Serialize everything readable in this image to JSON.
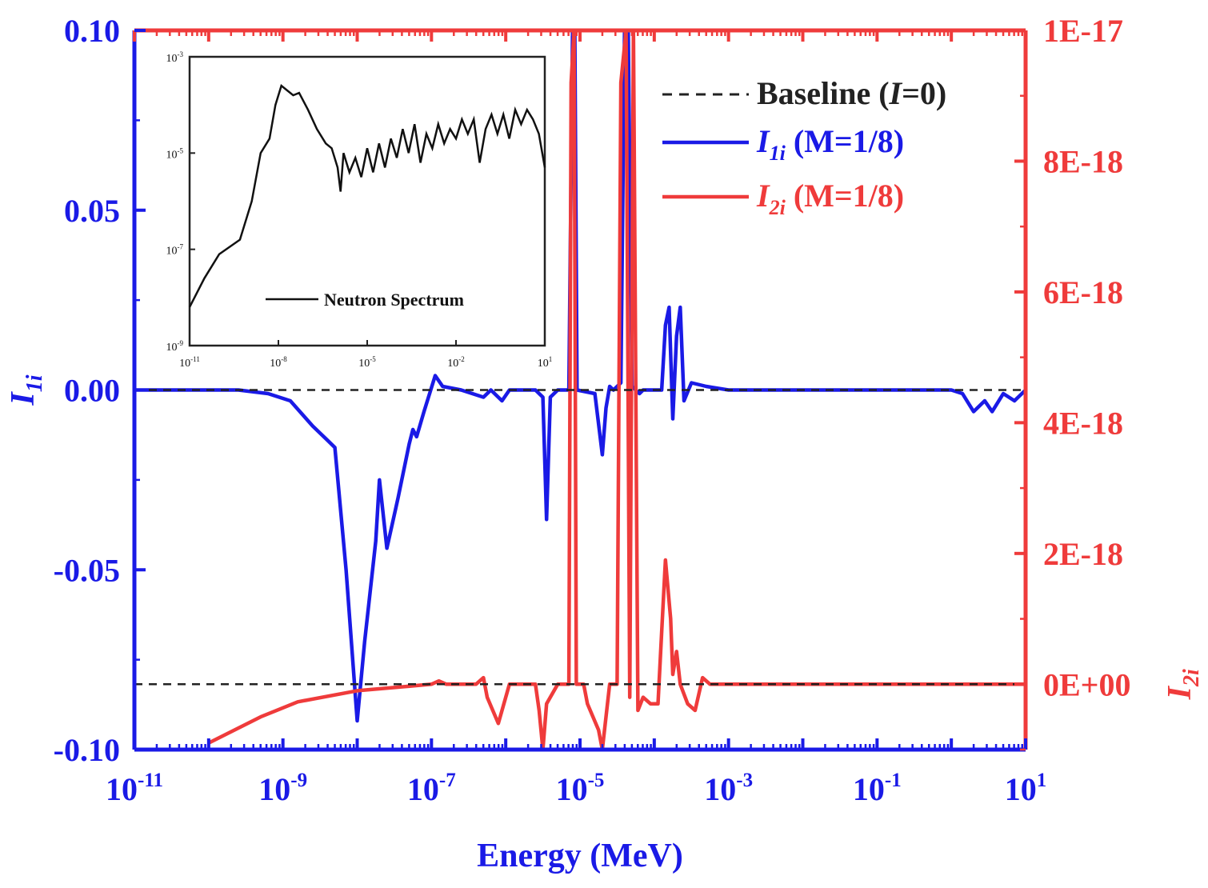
{
  "chart_data": {
    "type": "line",
    "xlabel": "Energy (MeV)",
    "xscale": "log",
    "xlim": [
      1e-11,
      10
    ],
    "x_ticks": [
      {
        "base": "10",
        "exp": "-11",
        "value": 1e-11
      },
      {
        "base": "10",
        "exp": "-9",
        "value": 1e-09
      },
      {
        "base": "10",
        "exp": "-7",
        "value": 1e-07
      },
      {
        "base": "10",
        "exp": "-5",
        "value": 1e-05
      },
      {
        "base": "10",
        "exp": "-3",
        "value": 0.001
      },
      {
        "base": "10",
        "exp": "-1",
        "value": 0.1
      },
      {
        "base": "10",
        "exp": "1",
        "value": 10
      }
    ],
    "y_left": {
      "label_main": "I",
      "label_sub": "1i",
      "lim": [
        -0.1,
        0.1
      ],
      "ticks": [
        {
          "label": "0.10",
          "value": 0.1
        },
        {
          "label": "0.05",
          "value": 0.05
        },
        {
          "label": "0.00",
          "value": 0.0
        },
        {
          "label": "-0.05",
          "value": -0.05
        },
        {
          "label": "-0.10",
          "value": -0.1
        }
      ],
      "color": "#1a1ae6"
    },
    "y_right": {
      "label_main": "I",
      "label_sub": "2i",
      "lim": [
        -1e-18,
        1e-17
      ],
      "ticks": [
        {
          "label": "1E-17",
          "value": 1e-17
        },
        {
          "label": "8E-18",
          "value": 8e-18
        },
        {
          "label": "6E-18",
          "value": 6e-18
        },
        {
          "label": "4E-18",
          "value": 4e-18
        },
        {
          "label": "2E-18",
          "value": 2e-18
        },
        {
          "label": "0E+00",
          "value": 0
        }
      ],
      "color": "#ef3b3b"
    },
    "legend": {
      "position": "top-right",
      "entries": [
        {
          "pre": "Baseline (",
          "italic": "I",
          "post": "=0)",
          "sub": "",
          "color": "#222222",
          "style": "dashed"
        },
        {
          "pre": "",
          "italic": "I",
          "sub": "1i",
          "post": " (M=1/8)",
          "color": "#1a1ae6",
          "style": "solid"
        },
        {
          "pre": "",
          "italic": "I",
          "sub": "2i",
          "post": " (M=1/8)",
          "color": "#ef3b3b",
          "style": "solid"
        }
      ]
    },
    "series": [
      {
        "name": "I1i (M=1/8)",
        "axis": "left",
        "color": "#1a1ae6",
        "points": [
          [
            -11,
            0
          ],
          [
            -9.6,
            0
          ],
          [
            -9.2,
            -0.001
          ],
          [
            -8.9,
            -0.003
          ],
          [
            -8.6,
            -0.01
          ],
          [
            -8.4,
            -0.014
          ],
          [
            -8.3,
            -0.016
          ],
          [
            -8.15,
            -0.05
          ],
          [
            -8.0,
            -0.092
          ],
          [
            -7.9,
            -0.07
          ],
          [
            -7.75,
            -0.042
          ],
          [
            -7.7,
            -0.025
          ],
          [
            -7.6,
            -0.044
          ],
          [
            -7.45,
            -0.03
          ],
          [
            -7.3,
            -0.015
          ],
          [
            -7.25,
            -0.011
          ],
          [
            -7.2,
            -0.013
          ],
          [
            -7.1,
            -0.006
          ],
          [
            -6.95,
            0.004
          ],
          [
            -6.85,
            0.001
          ],
          [
            -6.6,
            0
          ],
          [
            -6.3,
            -0.002
          ],
          [
            -6.2,
            0
          ],
          [
            -6.05,
            -0.003
          ],
          [
            -5.95,
            0
          ],
          [
            -5.6,
            0
          ],
          [
            -5.5,
            -0.002
          ],
          [
            -5.45,
            -0.036
          ],
          [
            -5.4,
            -0.002
          ],
          [
            -5.3,
            0
          ],
          [
            -5.15,
            0
          ],
          [
            -5.1,
            0.1
          ],
          [
            -5.07,
            0.1
          ],
          [
            -5.04,
            0
          ],
          [
            -4.8,
            -0.001
          ],
          [
            -4.7,
            -0.018
          ],
          [
            -4.65,
            -0.005
          ],
          [
            -4.6,
            0.001
          ],
          [
            -4.55,
            0
          ],
          [
            -4.45,
            0.002
          ],
          [
            -4.4,
            0.1
          ],
          [
            -4.35,
            0.1
          ],
          [
            -4.3,
            0.001
          ],
          [
            -4.2,
            -0.001
          ],
          [
            -4.15,
            0
          ],
          [
            -3.9,
            0
          ],
          [
            -3.85,
            0.018
          ],
          [
            -3.8,
            0.023
          ],
          [
            -3.75,
            -0.008
          ],
          [
            -3.7,
            0.015
          ],
          [
            -3.65,
            0.023
          ],
          [
            -3.6,
            -0.003
          ],
          [
            -3.5,
            0.002
          ],
          [
            -3.3,
            0.001
          ],
          [
            -3.0,
            0
          ],
          [
            -1.0,
            0
          ],
          [
            0,
            0
          ],
          [
            0.15,
            -0.001
          ],
          [
            0.3,
            -0.006
          ],
          [
            0.45,
            -0.003
          ],
          [
            0.55,
            -0.006
          ],
          [
            0.7,
            -0.001
          ],
          [
            0.85,
            -0.003
          ],
          [
            1.0,
            0
          ]
        ]
      },
      {
        "name": "I2i (M=1/8)",
        "axis": "right",
        "color": "#ef3b3b",
        "points": [
          [
            -10,
            -9e-19
          ],
          [
            -9.3,
            -5e-19
          ],
          [
            -8.8,
            -2.7e-19
          ],
          [
            -8.0,
            -1e-19
          ],
          [
            -7.5,
            -5e-20
          ],
          [
            -7.0,
            0
          ],
          [
            -6.9,
            5e-20
          ],
          [
            -6.8,
            0
          ],
          [
            -6.4,
            0
          ],
          [
            -6.3,
            1e-19
          ],
          [
            -6.25,
            -2e-19
          ],
          [
            -6.1,
            -6e-19
          ],
          [
            -5.95,
            0
          ],
          [
            -5.6,
            0
          ],
          [
            -5.55,
            -4e-19
          ],
          [
            -5.5,
            -1e-18
          ],
          [
            -5.45,
            -3e-19
          ],
          [
            -5.3,
            0
          ],
          [
            -5.15,
            0
          ],
          [
            -5.12,
            9.2e-18
          ],
          [
            -5.08,
            1e-17
          ],
          [
            -5.05,
            0
          ],
          [
            -4.95,
            0
          ],
          [
            -4.9,
            -3e-19
          ],
          [
            -4.75,
            -7e-19
          ],
          [
            -4.7,
            -1e-18
          ],
          [
            -4.65,
            -5e-19
          ],
          [
            -4.6,
            0
          ],
          [
            -4.5,
            0
          ],
          [
            -4.45,
            9.2e-18
          ],
          [
            -4.38,
            1e-17
          ],
          [
            -4.33,
            -2e-19
          ],
          [
            -4.28,
            1e-17
          ],
          [
            -4.22,
            -4e-19
          ],
          [
            -4.15,
            -2e-19
          ],
          [
            -4.05,
            -3e-19
          ],
          [
            -3.95,
            -3e-19
          ],
          [
            -3.9,
            8e-19
          ],
          [
            -3.85,
            1.9e-18
          ],
          [
            -3.78,
            1e-18
          ],
          [
            -3.75,
            1.5e-19
          ],
          [
            -3.7,
            5e-19
          ],
          [
            -3.65,
            0
          ],
          [
            -3.55,
            -3e-19
          ],
          [
            -3.45,
            -4e-19
          ],
          [
            -3.35,
            1e-19
          ],
          [
            -3.25,
            0
          ],
          [
            1.0,
            0
          ]
        ]
      },
      {
        "name": "Baseline (I=0)",
        "axis": "both",
        "color": "#222222",
        "style": "dashed",
        "points": [
          [
            -11,
            0
          ],
          [
            1,
            0
          ]
        ]
      }
    ],
    "inset": {
      "type": "line",
      "legend_label": "Neutron Spectrum",
      "xscale": "log",
      "yscale": "log",
      "xlim": [
        1e-11,
        10
      ],
      "ylim": [
        1e-09,
        0.001
      ],
      "x_ticks": [
        {
          "base": "10",
          "exp": "-11",
          "value": 1e-11
        },
        {
          "base": "10",
          "exp": "-8",
          "value": 1e-08
        },
        {
          "base": "10",
          "exp": "-5",
          "value": 1e-05
        },
        {
          "base": "10",
          "exp": "-2",
          "value": 0.01
        },
        {
          "base": "10",
          "exp": "1",
          "value": 10
        }
      ],
      "y_ticks": [
        {
          "base": "10",
          "exp": "-3",
          "value": 0.001
        },
        {
          "base": "10",
          "exp": "-5",
          "value": 1e-05
        },
        {
          "base": "10",
          "exp": "-7",
          "value": 1e-07
        },
        {
          "base": "10",
          "exp": "-9",
          "value": 1e-09
        }
      ],
      "color": "#111111",
      "points": [
        [
          -11,
          -8.2
        ],
        [
          -10.5,
          -7.6
        ],
        [
          -10.0,
          -7.1
        ],
        [
          -9.3,
          -6.8
        ],
        [
          -8.9,
          -6.0
        ],
        [
          -8.6,
          -5.0
        ],
        [
          -8.3,
          -4.7
        ],
        [
          -8.1,
          -4.0
        ],
        [
          -7.9,
          -3.6
        ],
        [
          -7.7,
          -3.7
        ],
        [
          -7.5,
          -3.8
        ],
        [
          -7.3,
          -3.75
        ],
        [
          -7.0,
          -4.1
        ],
        [
          -6.7,
          -4.5
        ],
        [
          -6.4,
          -4.8
        ],
        [
          -6.2,
          -4.9
        ],
        [
          -6.0,
          -5.3
        ],
        [
          -5.9,
          -5.8
        ],
        [
          -5.8,
          -5.0
        ],
        [
          -5.6,
          -5.4
        ],
        [
          -5.4,
          -5.1
        ],
        [
          -5.2,
          -5.5
        ],
        [
          -5.0,
          -4.9
        ],
        [
          -4.8,
          -5.4
        ],
        [
          -4.6,
          -4.8
        ],
        [
          -4.4,
          -5.3
        ],
        [
          -4.2,
          -4.7
        ],
        [
          -4.0,
          -5.1
        ],
        [
          -3.8,
          -4.5
        ],
        [
          -3.6,
          -5.0
        ],
        [
          -3.4,
          -4.4
        ],
        [
          -3.2,
          -5.2
        ],
        [
          -3.0,
          -4.6
        ],
        [
          -2.8,
          -4.9
        ],
        [
          -2.6,
          -4.4
        ],
        [
          -2.4,
          -4.8
        ],
        [
          -2.2,
          -4.5
        ],
        [
          -2.0,
          -4.7
        ],
        [
          -1.8,
          -4.3
        ],
        [
          -1.6,
          -4.6
        ],
        [
          -1.4,
          -4.3
        ],
        [
          -1.2,
          -5.2
        ],
        [
          -1.0,
          -4.5
        ],
        [
          -0.8,
          -4.2
        ],
        [
          -0.6,
          -4.6
        ],
        [
          -0.4,
          -4.2
        ],
        [
          -0.2,
          -4.7
        ],
        [
          0.0,
          -4.1
        ],
        [
          0.2,
          -4.4
        ],
        [
          0.4,
          -4.1
        ],
        [
          0.6,
          -4.3
        ],
        [
          0.8,
          -4.6
        ],
        [
          1.0,
          -5.3
        ]
      ]
    }
  }
}
